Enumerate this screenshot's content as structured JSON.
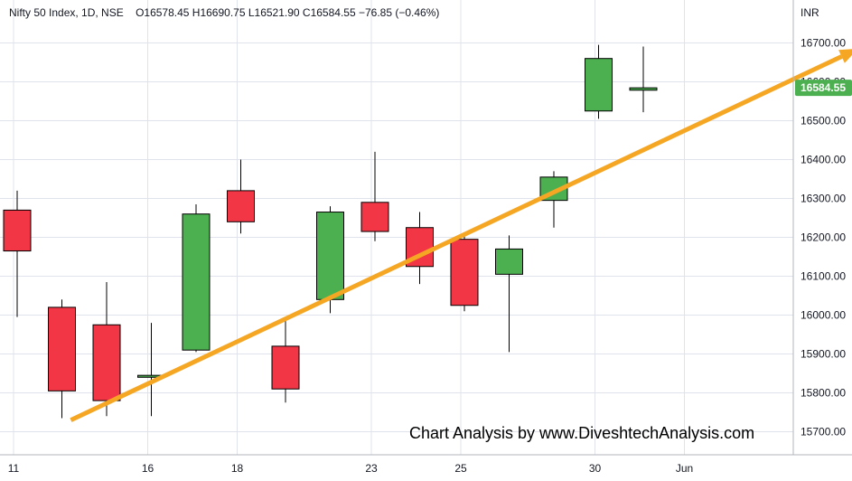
{
  "header": {
    "symbol": "Nifty 50 Index, 1D, NSE",
    "ohlc": "O16578.45  H16690.75  L16521.90  C16584.55  −76.85 (−0.46%)"
  },
  "currency": "INR",
  "watermark": "Chart Analysis by www.DiveshtechAnalysis.com",
  "last_price_label": "16584.55",
  "colors": {
    "up": "#4caf50",
    "down": "#f23645",
    "trendline": "#f5a623",
    "grid": "#e0e3eb",
    "price_tag": "#4caf50"
  },
  "chart_data": {
    "type": "candlestick",
    "title": "Nifty 50 Index, 1D, NSE",
    "ylabel": "INR",
    "ylim": [
      15650,
      16760
    ],
    "grid": true,
    "y_ticks": [
      15700,
      15800,
      15900,
      16000,
      16100,
      16200,
      16300,
      16400,
      16500,
      16600,
      16700
    ],
    "y_tick_labels": [
      "15700.00",
      "15800.00",
      "15900.00",
      "16000.00",
      "16100.00",
      "16200.00",
      "16300.00",
      "16400.00",
      "16500.00",
      "16600.00",
      "16700.00"
    ],
    "x_tick_labels": [
      {
        "label": "11",
        "index": 0
      },
      {
        "label": "16",
        "index": 3
      },
      {
        "label": "18",
        "index": 5
      },
      {
        "label": "23",
        "index": 8
      },
      {
        "label": "25",
        "index": 10
      },
      {
        "label": "30",
        "index": 13
      },
      {
        "label": "Jun",
        "index": 15
      }
    ],
    "candles": [
      {
        "open": 16270,
        "high": 16320,
        "low": 15995,
        "close": 16165
      },
      {
        "open": 16020,
        "high": 16040,
        "low": 15735,
        "close": 15805
      },
      {
        "open": 15975,
        "high": 16085,
        "low": 15740,
        "close": 15780
      },
      {
        "open": 15840,
        "high": 15980,
        "low": 15740,
        "close": 15845
      },
      {
        "open": 15910,
        "high": 16285,
        "low": 15905,
        "close": 16260
      },
      {
        "open": 16320,
        "high": 16400,
        "low": 16210,
        "close": 16240
      },
      {
        "open": 15920,
        "high": 15985,
        "low": 15775,
        "close": 15810
      },
      {
        "open": 16040,
        "high": 16280,
        "low": 16005,
        "close": 16265
      },
      {
        "open": 16290,
        "high": 16420,
        "low": 16190,
        "close": 16215
      },
      {
        "open": 16225,
        "high": 16265,
        "low": 16080,
        "close": 16125
      },
      {
        "open": 16195,
        "high": 16210,
        "low": 16010,
        "close": 16025
      },
      {
        "open": 16105,
        "high": 16205,
        "low": 15905,
        "close": 16170
      },
      {
        "open": 16295,
        "high": 16370,
        "low": 16225,
        "close": 16355
      },
      {
        "open": 16525,
        "high": 16695,
        "low": 16505,
        "close": 16660
      },
      {
        "open": 16578.45,
        "high": 16690.75,
        "low": 16521.9,
        "close": 16584.55
      }
    ],
    "trendline": {
      "start": {
        "index": 1.2,
        "price": 15730
      },
      "end": {
        "index": 18.8,
        "price": 16685
      }
    }
  }
}
